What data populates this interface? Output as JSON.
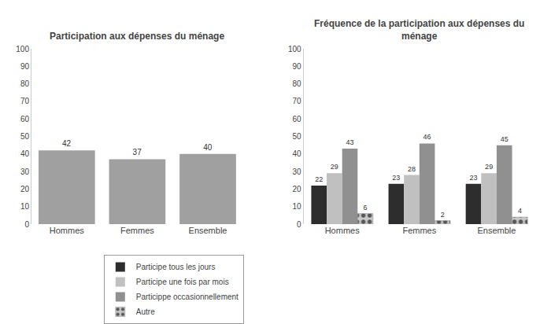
{
  "chart_data": [
    {
      "type": "bar",
      "title": "Participation aux dépenses du ménage",
      "categories": [
        "Hommes",
        "Femmes",
        "Ensemble"
      ],
      "values": [
        42,
        37,
        40
      ],
      "color": "#a0a0a0",
      "ylim": [
        0,
        100
      ],
      "yticks": [
        0,
        10,
        20,
        30,
        40,
        50,
        60,
        70,
        80,
        90,
        100
      ],
      "data_labels": true,
      "grid": false
    },
    {
      "type": "bar",
      "title": "Fréquence de la participation aux dépenses du\nménage",
      "categories": [
        "Hommes",
        "Femmes",
        "Ensemble"
      ],
      "series": [
        {
          "name": "Participe tous les jours",
          "color": "#2d2d2d",
          "values": [
            22,
            23,
            23
          ]
        },
        {
          "name": "Participe une fois par mois",
          "color": "#c0c0c0",
          "values": [
            29,
            28,
            29
          ]
        },
        {
          "name": "Particippe occasionnellement",
          "color": "#909090",
          "values": [
            43,
            46,
            45
          ]
        },
        {
          "name": "Autre",
          "color": "#c8c8c8",
          "values": [
            6,
            2,
            4
          ],
          "marker": "dots"
        }
      ],
      "ylim": [
        0,
        100
      ],
      "yticks": [
        0,
        10,
        20,
        30,
        40,
        50,
        60,
        70,
        80,
        90,
        100
      ],
      "data_labels": true,
      "grid": false,
      "legend": "bottom"
    }
  ]
}
